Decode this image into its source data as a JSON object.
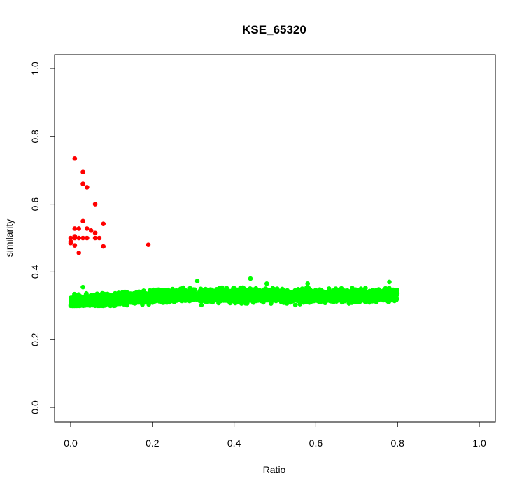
{
  "chart_data": {
    "type": "scatter",
    "title": "KSE_65320",
    "xlabel": "Ratio",
    "ylabel": "similarity",
    "xlim": [
      0.0,
      1.0
    ],
    "ylim": [
      0.0,
      1.0
    ],
    "x_ticks": [
      "0.0",
      "0.2",
      "0.4",
      "0.6",
      "0.8",
      "1.0"
    ],
    "y_ticks": [
      "0.0",
      "0.2",
      "0.4",
      "0.6",
      "0.8",
      "1.0"
    ],
    "grid": false,
    "series": [
      {
        "color": "#ff0000",
        "points": [
          [
            0.01,
            0.735
          ],
          [
            0.03,
            0.695
          ],
          [
            0.03,
            0.66
          ],
          [
            0.04,
            0.65
          ],
          [
            0.06,
            0.6
          ],
          [
            0.03,
            0.55
          ],
          [
            0.08,
            0.542
          ],
          [
            0.01,
            0.528
          ],
          [
            0.02,
            0.528
          ],
          [
            0.04,
            0.528
          ],
          [
            0.05,
            0.522
          ],
          [
            0.06,
            0.515
          ],
          [
            0.01,
            0.505
          ],
          [
            0.0,
            0.5
          ],
          [
            0.01,
            0.5
          ],
          [
            0.02,
            0.5
          ],
          [
            0.03,
            0.5
          ],
          [
            0.04,
            0.5
          ],
          [
            0.06,
            0.5
          ],
          [
            0.07,
            0.5
          ],
          [
            0.0,
            0.49
          ],
          [
            0.0,
            0.485
          ],
          [
            0.01,
            0.478
          ],
          [
            0.08,
            0.475
          ],
          [
            0.19,
            0.48
          ],
          [
            0.02,
            0.456
          ]
        ]
      },
      {
        "color": "#00ff00",
        "x_range": [
          0.0,
          0.8
        ],
        "y_band": [
          0.3,
          0.38
        ],
        "center_at_start": 0.31,
        "center_at_end": 0.33,
        "outliers": [
          [
            0.0,
            0.3
          ],
          [
            0.01,
            0.3
          ],
          [
            0.03,
            0.355
          ],
          [
            0.06,
            0.3
          ],
          [
            0.08,
            0.3
          ],
          [
            0.31,
            0.373
          ],
          [
            0.32,
            0.302
          ],
          [
            0.44,
            0.38
          ],
          [
            0.48,
            0.365
          ],
          [
            0.55,
            0.302
          ],
          [
            0.58,
            0.365
          ],
          [
            0.78,
            0.37
          ]
        ]
      }
    ]
  }
}
